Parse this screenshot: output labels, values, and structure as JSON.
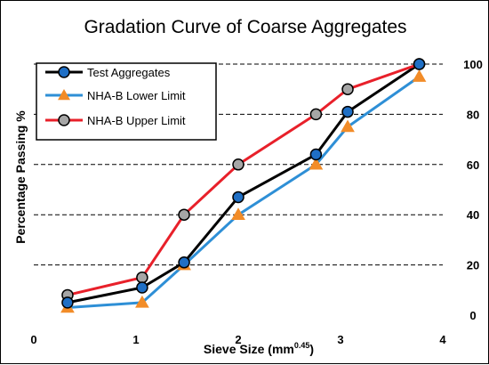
{
  "chart_data": {
    "type": "line",
    "title": "Gradation Curve  of Coarse Aggregates",
    "xlabel": "Sieve Size (mm",
    "xlabel_sup": "0.45",
    "xlabel_end": ")",
    "ylabel": "Percentage Passing %",
    "xlim": [
      0,
      4
    ],
    "ylim": [
      0,
      100
    ],
    "x_ticks": [
      "0",
      "1",
      "2",
      "3",
      "4"
    ],
    "y_ticks": [
      "0",
      "20",
      "40",
      "60",
      "80",
      "100"
    ],
    "grid": "horizontal-dashed",
    "legend_position": "top-left",
    "series": [
      {
        "name": "Test Aggregates",
        "color": "#000000",
        "marker": "circle",
        "marker_color": "#1f6fc5",
        "points": [
          [
            0.33,
            5
          ],
          [
            1.06,
            11
          ],
          [
            1.47,
            21
          ],
          [
            2.0,
            47
          ],
          [
            2.76,
            64
          ],
          [
            3.07,
            81
          ],
          [
            3.77,
            100
          ]
        ]
      },
      {
        "name": "NHA-B Lower Limit",
        "color": "#2e8fd6",
        "marker": "triangle",
        "marker_color": "#f28c28",
        "points": [
          [
            0.33,
            3
          ],
          [
            1.06,
            5
          ],
          [
            1.47,
            20
          ],
          [
            2.0,
            40
          ],
          [
            2.76,
            60
          ],
          [
            3.07,
            75
          ],
          [
            3.77,
            95
          ]
        ]
      },
      {
        "name": "NHA-B Upper Limit",
        "color": "#e8202a",
        "marker": "circle",
        "marker_color": "#a6a6a6",
        "points": [
          [
            0.33,
            8
          ],
          [
            1.06,
            15
          ],
          [
            1.47,
            40
          ],
          [
            2.0,
            60
          ],
          [
            2.76,
            80
          ],
          [
            3.07,
            90
          ],
          [
            3.77,
            100
          ]
        ]
      }
    ]
  }
}
